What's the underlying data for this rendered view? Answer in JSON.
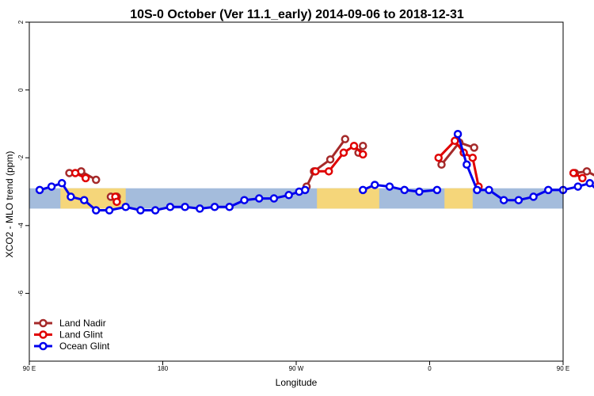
{
  "chart_data": {
    "type": "line",
    "title": "10S-0 October (Ver 11.1_early)   2014-09-06 to 2018-12-31",
    "xlabel": "Longitude",
    "ylabel": "XCO2 - MLO trend (ppm)",
    "xlim": [
      90,
      450
    ],
    "ylim": [
      -8,
      2
    ],
    "x_ticks": [
      {
        "value": 90,
        "label": "90 E"
      },
      {
        "value": 180,
        "label": "180"
      },
      {
        "value": 270,
        "label": "90 W"
      },
      {
        "value": 360,
        "label": "0"
      },
      {
        "value": 450,
        "label": "90 E"
      },
      {
        "value": 540,
        "label": "180"
      }
    ],
    "y_ticks": [
      {
        "value": 2,
        "label": "2"
      },
      {
        "value": 0,
        "label": "0"
      },
      {
        "value": -2,
        "label": "-2"
      },
      {
        "value": -4,
        "label": "-4"
      },
      {
        "value": -6,
        "label": "-6"
      }
    ],
    "band": {
      "ymin": -3.5,
      "ymax": -2.9,
      "color": "#a4bcdc",
      "land_color": "#f5d67a"
    },
    "land_spans": [
      [
        111,
        155
      ],
      [
        284,
        326
      ],
      [
        370,
        389
      ],
      [
        551,
        597
      ]
    ],
    "legend_position": "bottom-left",
    "series": [
      {
        "name": "Land Nadir",
        "color": "#a52a2a",
        "segments": [
          {
            "x": [
              117,
              125,
              135
            ],
            "y": [
              -2.45,
              -2.4,
              -2.65
            ]
          },
          {
            "x": [
              145,
              149
            ],
            "y": [
              -3.15,
              -3.15
            ]
          },
          {
            "x": [
              277,
              282,
              293,
              303
            ],
            "y": [
              -2.85,
              -2.4,
              -2.05,
              -1.45
            ]
          },
          {
            "x": [
              312,
              315
            ],
            "y": [
              -1.85,
              -1.65
            ]
          },
          {
            "x": [
              368,
              380,
              390
            ],
            "y": [
              -2.2,
              -1.55,
              -1.7
            ]
          },
          {
            "x": [
              458,
              466,
              477
            ],
            "y": [
              -2.45,
              -2.4,
              -2.65
            ]
          },
          {
            "x": [
              488,
              491
            ],
            "y": [
              -3.15,
              -3.15
            ]
          }
        ]
      },
      {
        "name": "Land Glint",
        "color": "#e00000",
        "segments": [
          {
            "x": [
              121,
              128
            ],
            "y": [
              -2.45,
              -2.6
            ]
          },
          {
            "x": [
              148,
              149
            ],
            "y": [
              -3.15,
              -3.3
            ]
          },
          {
            "x": [
              283,
              292,
              302,
              309,
              315
            ],
            "y": [
              -2.4,
              -2.4,
              -1.85,
              -1.65,
              -1.9
            ]
          },
          {
            "x": [
              366,
              377,
              383,
              389,
              393
            ],
            "y": [
              -2.0,
              -1.5,
              -1.85,
              -2.0,
              -2.85
            ]
          },
          {
            "x": [
              457,
              463
            ],
            "y": [
              -2.45,
              -2.6
            ]
          },
          {
            "x": [
              488,
              492
            ],
            "y": [
              -3.15,
              -3.3
            ]
          }
        ]
      },
      {
        "name": "Ocean Glint",
        "color": "#0000ee",
        "segments": [
          {
            "x": [
              97,
              105,
              112,
              118,
              127,
              135,
              144,
              155,
              165,
              175,
              185,
              195,
              205,
              215,
              225,
              235,
              245,
              255,
              265,
              272,
              276
            ],
            "y": [
              -2.95,
              -2.85,
              -2.75,
              -3.15,
              -3.25,
              -3.55,
              -3.55,
              -3.45,
              -3.55,
              -3.55,
              -3.45,
              -3.45,
              -3.5,
              -3.45,
              -3.45,
              -3.25,
              -3.2,
              -3.2,
              -3.1,
              -3.0,
              -2.95
            ]
          },
          {
            "x": [
              315,
              323,
              333,
              343,
              353,
              365
            ],
            "y": [
              -2.95,
              -2.8,
              -2.85,
              -2.95,
              -3.0,
              -2.95
            ]
          },
          {
            "x": [
              379,
              385,
              392,
              400,
              410,
              420,
              430,
              440,
              450,
              460,
              468,
              478,
              490,
              500,
              510,
              520,
              530
            ],
            "y": [
              -1.3,
              -2.2,
              -2.95,
              -2.95,
              -3.25,
              -3.25,
              -3.15,
              -2.95,
              -2.95,
              -2.85,
              -2.75,
              -3.15,
              -3.55,
              -3.55,
              -3.5,
              -3.45,
              -3.55
            ]
          }
        ]
      }
    ]
  }
}
